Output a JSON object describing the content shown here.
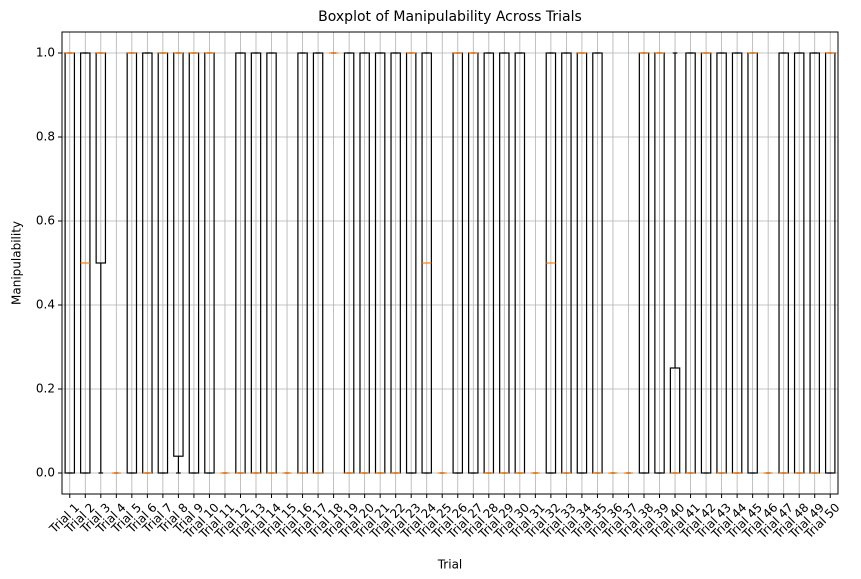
{
  "chart_data": {
    "type": "boxplot",
    "title": "Boxplot of Manipulability Across Trials",
    "x_label": "Trial",
    "y_label": "Manipulability",
    "categories": [
      "Trial 1",
      "Trial 2",
      "Trial 3",
      "Trial 4",
      "Trial 5",
      "Trial 6",
      "Trial 7",
      "Trial 8",
      "Trial 9",
      "Trial 10",
      "Trial 11",
      "Trial 12",
      "Trial 13",
      "Trial 14",
      "Trial 15",
      "Trial 16",
      "Trial 17",
      "Trial 18",
      "Trial 19",
      "Trial 20",
      "Trial 21",
      "Trial 22",
      "Trial 23",
      "Trial 24",
      "Trial 25",
      "Trial 26",
      "Trial 27",
      "Trial 28",
      "Trial 29",
      "Trial 30",
      "Trial 31",
      "Trial 32",
      "Trial 33",
      "Trial 34",
      "Trial 35",
      "Trial 36",
      "Trial 37",
      "Trial 38",
      "Trial 39",
      "Trial 40",
      "Trial 41",
      "Trial 42",
      "Trial 43",
      "Trial 44",
      "Trial 45",
      "Trial 46",
      "Trial 47",
      "Trial 48",
      "Trial 49",
      "Trial 50"
    ],
    "whislo": [
      0,
      0,
      0,
      0,
      0,
      0,
      0,
      0,
      0,
      0,
      0,
      0,
      0,
      0,
      0,
      0,
      0,
      1,
      0,
      0,
      0,
      0,
      0,
      0,
      0,
      0,
      0,
      0,
      0,
      0,
      0,
      0,
      0,
      0,
      0,
      0,
      0,
      0,
      0,
      0,
      0,
      0,
      0,
      0,
      0,
      0,
      0,
      0,
      0,
      0
    ],
    "q1": [
      0,
      0,
      0.5,
      0,
      0,
      0,
      0,
      0.04,
      0,
      0,
      0,
      0,
      0,
      0,
      0,
      0,
      0,
      1,
      0,
      0,
      0,
      0,
      0,
      0,
      0,
      0,
      0,
      0,
      0,
      0,
      0,
      0,
      0,
      0,
      0,
      0,
      0,
      0,
      0,
      0,
      0,
      0,
      0,
      0,
      0,
      0,
      0,
      0,
      0,
      0
    ],
    "median": [
      1,
      0.5,
      1,
      0,
      1,
      0,
      1,
      1,
      1,
      1,
      0,
      0,
      0,
      0,
      0,
      0,
      0,
      1,
      0,
      0,
      0,
      0,
      1,
      0.5,
      0,
      1,
      1,
      0,
      0,
      0,
      0,
      0.5,
      0,
      1,
      0,
      0,
      0,
      1,
      1,
      0,
      0,
      1,
      0,
      0,
      1,
      0,
      0,
      0,
      0,
      1
    ],
    "q3": [
      1,
      1,
      1,
      0,
      1,
      1,
      1,
      1,
      1,
      1,
      0,
      1,
      1,
      1,
      0,
      1,
      1,
      1,
      1,
      1,
      1,
      1,
      1,
      1,
      0,
      1,
      1,
      1,
      1,
      1,
      0,
      1,
      1,
      1,
      1,
      0,
      0,
      1,
      1,
      0.25,
      1,
      1,
      1,
      1,
      1,
      0,
      1,
      1,
      1,
      1
    ],
    "whishi": [
      1,
      1,
      1,
      0,
      1,
      1,
      1,
      1,
      1,
      1,
      0,
      1,
      1,
      1,
      0,
      1,
      1,
      1,
      1,
      1,
      1,
      1,
      1,
      1,
      0,
      1,
      1,
      1,
      1,
      1,
      0,
      1,
      1,
      1,
      1,
      0,
      0,
      1,
      1,
      1,
      1,
      1,
      1,
      1,
      1,
      0,
      1,
      1,
      1,
      1
    ],
    "box_color": "#000000",
    "median_color": "#ff7f0e",
    "ylim": [
      -0.05,
      1.05
    ],
    "yticks": [
      {
        "value": 0,
        "label": "0.0"
      },
      {
        "value": 0.2,
        "label": "0.2"
      },
      {
        "value": 0.4,
        "label": "0.4"
      },
      {
        "value": 0.6,
        "label": "0.6"
      },
      {
        "value": 0.8,
        "label": "0.8"
      },
      {
        "value": 1,
        "label": "1.0"
      }
    ],
    "grid": true
  }
}
